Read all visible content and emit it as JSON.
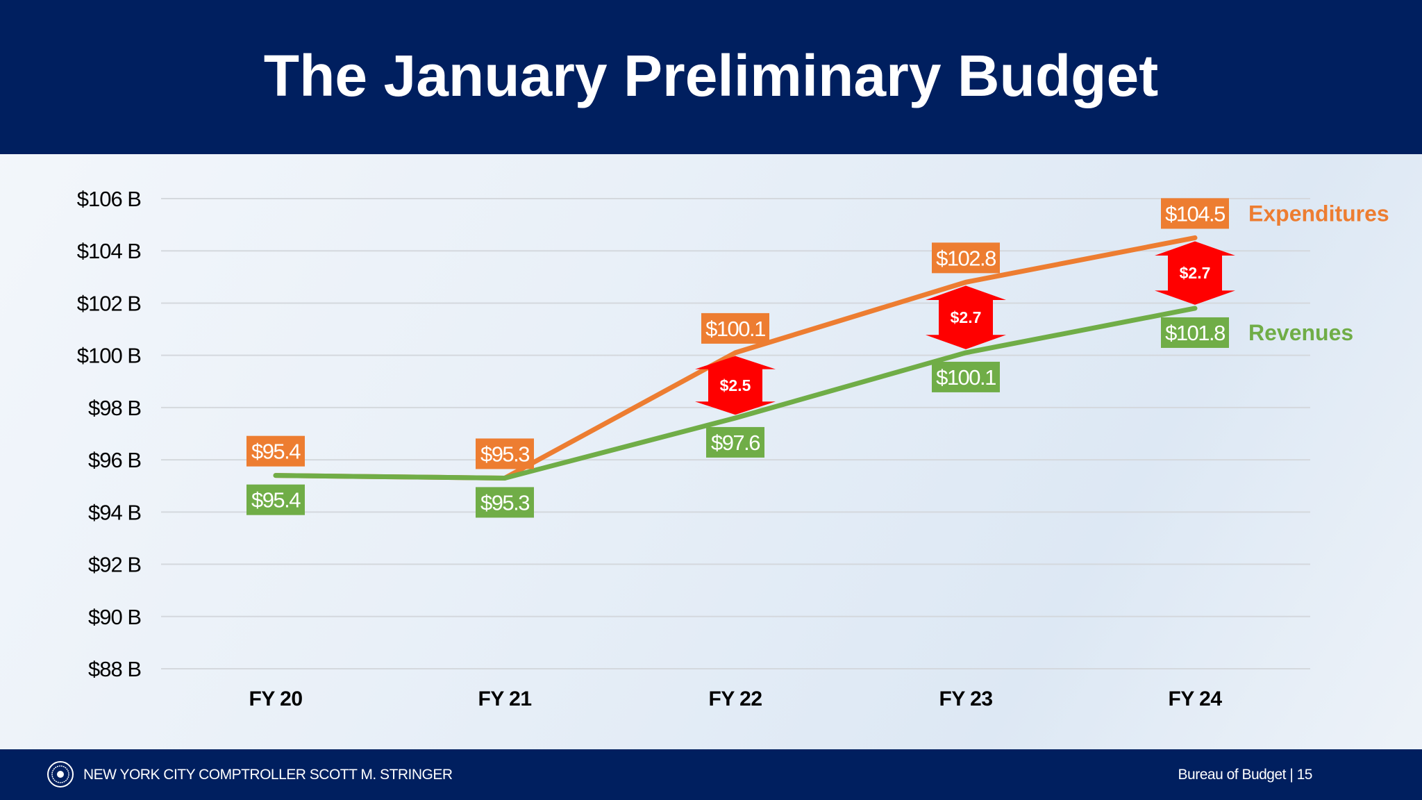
{
  "header": {
    "title": "The January Preliminary Budget"
  },
  "footer": {
    "organization": "NEW YORK CITY COMPTROLLER SCOTT M. STRINGER",
    "page_label": "Bureau of Budget | 15",
    "seal_icon": "nyc-seal-icon"
  },
  "chart_data": {
    "type": "line",
    "categories": [
      "FY 20",
      "FY 21",
      "FY 22",
      "FY 23",
      "FY 24"
    ],
    "ylim": [
      88,
      106
    ],
    "yticks": [
      88,
      90,
      92,
      94,
      96,
      98,
      100,
      102,
      104,
      106
    ],
    "ytick_labels": [
      "$88 B",
      "$90 B",
      "$92 B",
      "$94 B",
      "$96 B",
      "$98 B",
      "$100 B",
      "$102 B",
      "$104 B",
      "$106 B"
    ],
    "grid": true,
    "legend_placement": "right (inline at line ends)",
    "series": [
      {
        "name": "Expenditures",
        "color": "#ed7d31",
        "values": [
          95.4,
          95.3,
          100.1,
          102.8,
          104.5
        ],
        "labels": [
          "$95.4",
          "$95.3",
          "$100.1",
          "$102.8",
          "$104.5"
        ]
      },
      {
        "name": "Revenues",
        "color": "#70ad47",
        "values": [
          95.4,
          95.3,
          97.6,
          100.1,
          101.8
        ],
        "labels": [
          "$95.4",
          "$95.3",
          "$97.6",
          "$100.1",
          "$101.8"
        ]
      }
    ],
    "gap_annotations": [
      {
        "category": "FY 22",
        "label": "$2.5"
      },
      {
        "category": "FY 23",
        "label": "$2.7"
      },
      {
        "category": "FY 24",
        "label": "$2.7"
      }
    ],
    "gap_color": "#ff0000"
  }
}
